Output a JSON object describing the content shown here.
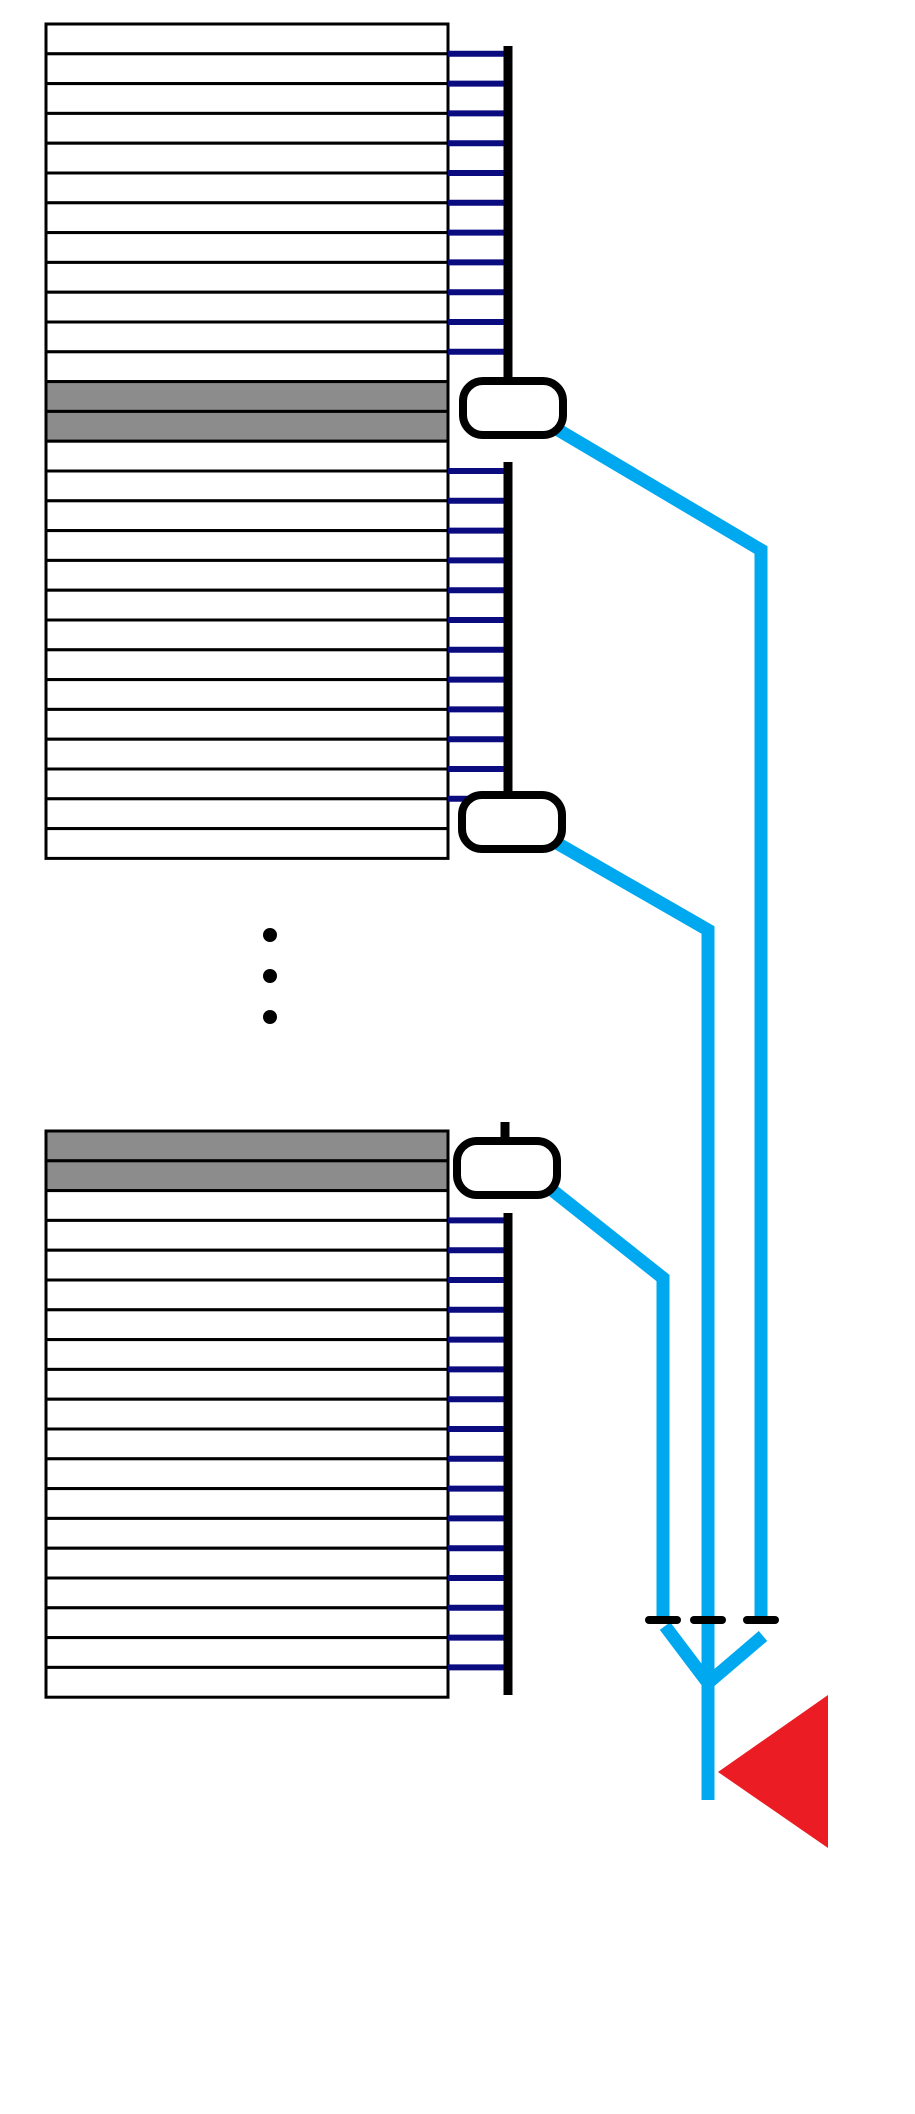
{
  "colors": {
    "background": "#ffffff",
    "outline": "#000000",
    "row_fill": "#ffffff",
    "gray_row_fill": "#8c8c8c",
    "tick": "#0b0b80",
    "bus": "#000000",
    "connector": "#00a8f0",
    "triangle": "#ec1c24"
  },
  "blocks": [
    {
      "name": "top",
      "rows": 28,
      "gray_rows": [
        12,
        13
      ],
      "tick_rows": [
        1,
        2,
        3,
        4,
        5,
        6,
        7,
        8,
        9,
        10,
        11,
        15,
        16,
        17,
        18,
        19,
        20,
        21,
        22,
        23,
        24,
        25,
        26
      ]
    },
    {
      "name": "bottom",
      "rows": 19,
      "gray_rows": [
        0,
        1
      ],
      "tick_rows": [
        3,
        4,
        5,
        6,
        7,
        8,
        9,
        10,
        11,
        12,
        13,
        14,
        15,
        16,
        17,
        18
      ]
    }
  ],
  "nodes": [
    {
      "name": "node-1"
    },
    {
      "name": "node-2"
    },
    {
      "name": "node-3"
    }
  ],
  "ellipsis_dots": 3,
  "output_symbol": "triangle"
}
